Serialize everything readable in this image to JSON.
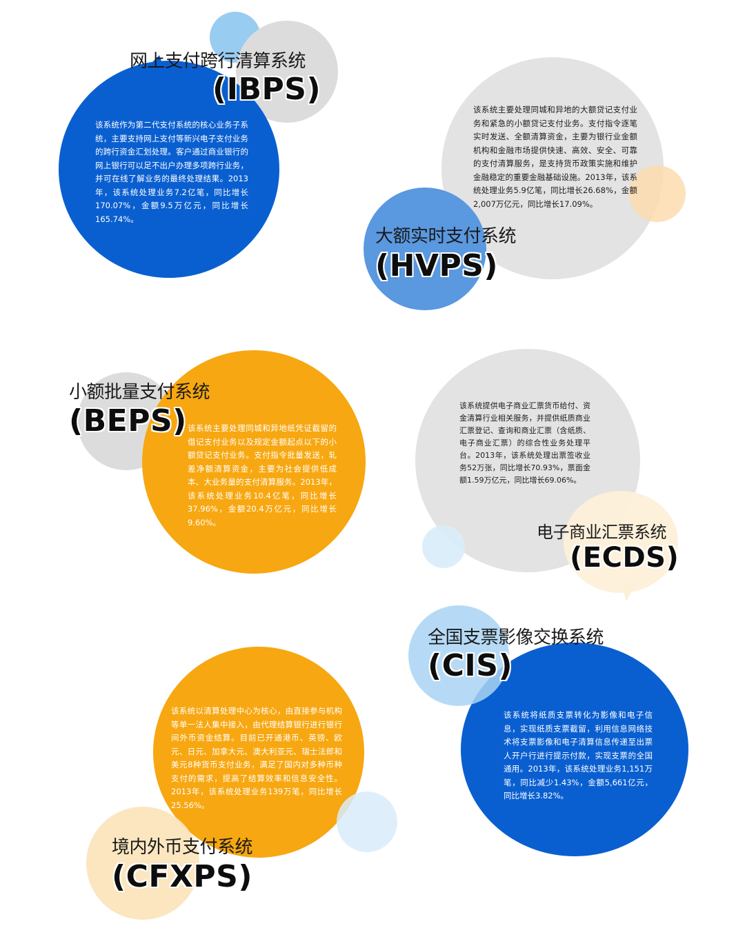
{
  "colors": {
    "blue": "#0a5fd0",
    "orange": "#f7a711",
    "gray": "#e3e3e3",
    "light_blue": "#a9d3f3",
    "mid_blue": "#5a98e0",
    "peach": "#fbe3b9"
  },
  "systems": [
    {
      "key": "ibps",
      "title": "网上支付跨行清算系统",
      "abbr": "(IBPS)",
      "desc": "该系统作为第二代支付系统的核心业务子系统，主要支持网上支付等新兴电子支付业务的跨行资金汇划处理。客户通过商业银行的网上银行可以足不出户办理多项跨行业务，并可在线了解业务的最终处理结果。2013年，该系统处理业务7.2亿笔，同比增长170.07%，金额9.5万亿元，同比增长165.74%。"
    },
    {
      "key": "hvps",
      "title": "大额实时支付系统",
      "abbr": "(HVPS)",
      "desc": "该系统主要处理同城和异地的大额贷记支付业务和紧急的小额贷记支付业务。支付指令逐笔实时发送、全额清算资金，主要为银行业金额机构和金融市场提供快速、高效、安全、可靠的支付清算服务，是支持货币政策实施和维护金融稳定的重要金融基础设施。2013年，该系统处理业务5.9亿笔，同比增长26.68%，金额2,007万亿元，同比增长17.09%。"
    },
    {
      "key": "beps",
      "title": "小额批量支付系统",
      "abbr": "(BEPS)",
      "desc": "该系统主要处理同城和异地纸凭证截留的借记支付业务以及规定金额起点以下的小额贷记支付业务。支付指令批量发送，轧差净额清算资金，主要为社会提供低成本、大业务量的支付清算服务。2013年，该系统处理业务10.4亿笔，同比增长37.96%，金额20.4万亿元，同比增长9.60%。"
    },
    {
      "key": "ecds",
      "title": "电子商业汇票系统",
      "abbr": "(ECDS)",
      "desc": "该系统提供电子商业汇票货币给付、资金清算行业相关服务，并提供纸质商业汇票登记、查询和商业汇票（含纸质、电子商业汇票）的综合性业务处理平台。2013年，该系统处理出票签收业务52万张，同比增长70.93%，票面金额1.59万亿元，同比增长69.06%。"
    },
    {
      "key": "cis",
      "title": "全国支票影像交换系统",
      "abbr": "(CIS)",
      "desc": "该系统将纸质支票转化为影像和电子信息，实现纸质支票截留，利用信息网络技术将支票影像和电子清算信息传递至出票人开户行进行提示付款，实现支票的全国通用。2013年，该系统处理业务1,151万笔，同比减少1.43%，金额5,661亿元，同比增长3.82%。"
    },
    {
      "key": "cfxps",
      "title": "境内外币支付系统",
      "abbr": "(CFXPS)",
      "desc": "该系统以清算处理中心为核心，由直接参与机构等单一法人集中接入，由代理结算银行进行银行间外币资金结算。目前已开通港币、英镑、欧元、日元、加拿大元、澳大利亚元、瑞士法郎和美元8种货币支付业务，满足了国内对多种币种支付的需求，提高了结算效率和信息安全性。2013年，该系统处理业务139万笔，同比增长25.56%。"
    }
  ]
}
